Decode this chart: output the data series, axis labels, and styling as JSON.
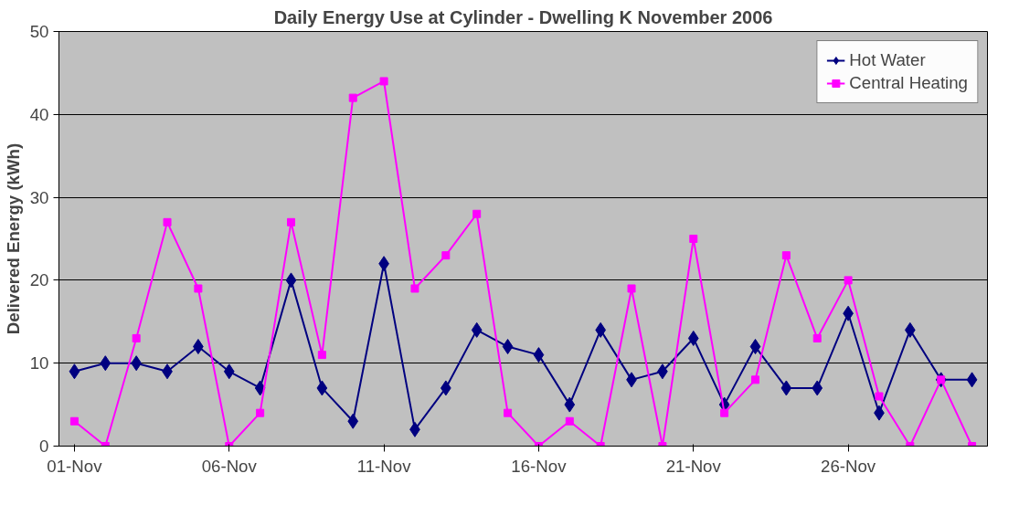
{
  "chart_data": {
    "type": "line",
    "title": "Daily Energy Use at Cylinder - Dwelling K November 2006",
    "ylabel": "Delivered Energy (kWh)",
    "x": [
      "2006-11-01",
      "2006-11-02",
      "2006-11-03",
      "2006-11-04",
      "2006-11-05",
      "2006-11-06",
      "2006-11-07",
      "2006-11-08",
      "2006-11-09",
      "2006-11-10",
      "2006-11-11",
      "2006-11-12",
      "2006-11-13",
      "2006-11-14",
      "2006-11-15",
      "2006-11-16",
      "2006-11-17",
      "2006-11-18",
      "2006-11-19",
      "2006-11-20",
      "2006-11-21",
      "2006-11-22",
      "2006-11-23",
      "2006-11-24",
      "2006-11-25",
      "2006-11-26",
      "2006-11-27",
      "2006-11-28",
      "2006-11-29",
      "2006-11-30"
    ],
    "series": [
      {
        "name": "Hot Water",
        "color": "#000080",
        "marker": "diamond",
        "values": [
          9,
          10,
          10,
          9,
          12,
          9,
          7,
          20,
          7,
          3,
          22,
          2,
          7,
          14,
          12,
          11,
          5,
          14,
          8,
          9,
          13,
          5,
          12,
          7,
          7,
          16,
          4,
          14,
          8,
          8
        ]
      },
      {
        "name": "Central Heating",
        "color": "#ff00ff",
        "marker": "square",
        "values": [
          3,
          0,
          13,
          27,
          19,
          0,
          4,
          27,
          11,
          42,
          44,
          19,
          23,
          28,
          4,
          0,
          3,
          0,
          19,
          0,
          25,
          4,
          8,
          23,
          13,
          20,
          6,
          0,
          8,
          0
        ]
      }
    ],
    "xlim": [
      "2006-10-31T12:00",
      "2006-11-30T12:00"
    ],
    "xticks": [
      {
        "value": "2006-11-01",
        "label": "01-Nov"
      },
      {
        "value": "2006-11-06",
        "label": "06-Nov"
      },
      {
        "value": "2006-11-11",
        "label": "11-Nov"
      },
      {
        "value": "2006-11-16",
        "label": "16-Nov"
      },
      {
        "value": "2006-11-21",
        "label": "21-Nov"
      },
      {
        "value": "2006-11-26",
        "label": "26-Nov"
      }
    ],
    "ylim": [
      0,
      50
    ],
    "yticks": [
      0,
      10,
      20,
      30,
      40,
      50
    ],
    "grid": "y",
    "legend": "top right",
    "line_style": "solid"
  }
}
